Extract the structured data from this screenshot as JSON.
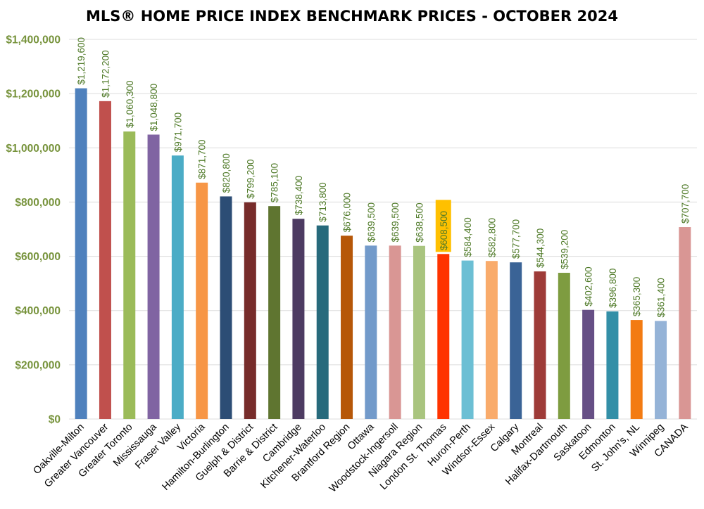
{
  "chart_data": {
    "type": "bar",
    "title": "MLS® HOME PRICE INDEX BENCHMARK PRICES - OCTOBER 2024",
    "xlabel": "",
    "ylabel": "",
    "ylim": [
      0,
      1400000
    ],
    "y_ticks": [
      0,
      200000,
      400000,
      600000,
      800000,
      1000000,
      1200000,
      1400000
    ],
    "y_tick_labels": [
      "$0",
      "$200,000",
      "$400,000",
      "$600,000",
      "$800,000",
      "$1,000,000",
      "$1,200,000",
      "$1,400,000"
    ],
    "grid": true,
    "categories": [
      "Oakville-Milton",
      "Greater Vancouver",
      "Greater Toronto",
      "Mississauga",
      "Fraser Valley",
      "Victoria",
      "Hamilton-Burlington",
      "Guelph & District",
      "Barrie & District",
      "Cambridge",
      "Kitchener-Waterloo",
      "Brantford Region",
      "Ottawa",
      "Woodstock-Ingersoll",
      "Niagara Region",
      "London St. Thomas",
      "Huron-Perth",
      "Windsor-Essex",
      "Calgary",
      "Montreal",
      "Halifax-Dartmouth",
      "Saskatoon",
      "Edmonton",
      "St. John's, NL",
      "Winnipeg",
      "CANADA"
    ],
    "values": [
      1219600,
      1172200,
      1060300,
      1048800,
      971700,
      871700,
      820800,
      799200,
      785100,
      738400,
      713800,
      676000,
      639500,
      639500,
      638500,
      608500,
      584400,
      582800,
      577700,
      544300,
      539200,
      402600,
      396800,
      365300,
      361400,
      707700
    ],
    "data_labels": [
      "$1,219,600",
      "$1,172,200",
      "$1,060,300",
      "$1,048,800",
      "$971,700",
      "$871,700",
      "$820,800",
      "$799,200",
      "$785,100",
      "$738,400",
      "$713,800",
      "$676,000",
      "$639,500",
      "$639,500",
      "$638,500",
      "$608,500",
      "$584,400",
      "$582,800",
      "$577,700",
      "$544,300",
      "$539,200",
      "$402,600",
      "$396,800",
      "$365,300",
      "$361,400",
      "$707,700"
    ],
    "colors": [
      "#4f81bd",
      "#c0504d",
      "#9bbb59",
      "#8064a2",
      "#4bacc6",
      "#f79646",
      "#2c4d75",
      "#772c2a",
      "#5f7530",
      "#4d3b62",
      "#276a7c",
      "#b65708",
      "#729aca",
      "#d99694",
      "#a9c47f",
      "#ff3300",
      "#6cbfd4",
      "#f9ab6b",
      "#3a6396",
      "#9e3b38",
      "#7e9c40",
      "#664f85",
      "#338fa7",
      "#f37b12",
      "#95b3d7",
      "#d99694"
    ],
    "highlight_label_index": 15,
    "highlight_label_color": "#ffc000"
  }
}
